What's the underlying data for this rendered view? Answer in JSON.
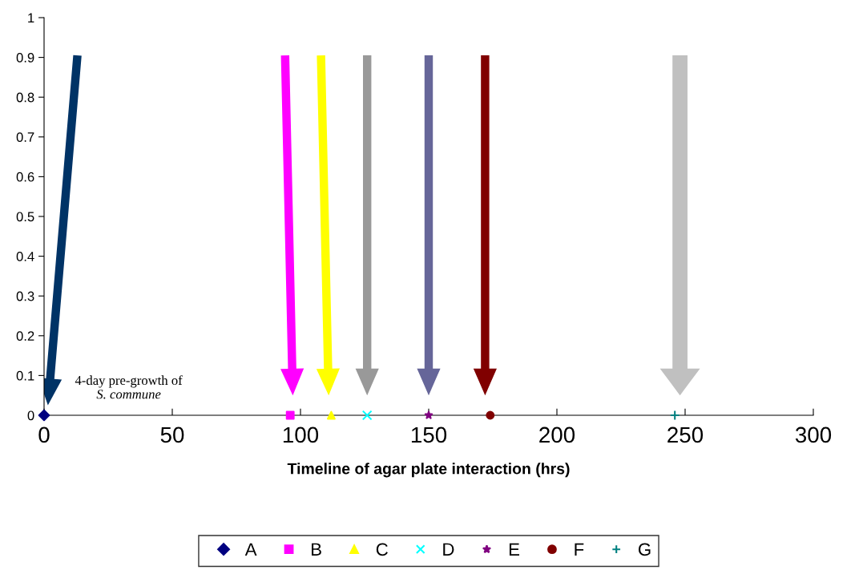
{
  "chart_data": {
    "type": "scatter",
    "xlabel": "Timeline of agar plate interaction (hrs)",
    "xlim": [
      0,
      300
    ],
    "xticks": [
      0,
      50,
      100,
      150,
      200,
      250,
      300
    ],
    "ylim": [
      0,
      1
    ],
    "yticks": [
      0,
      0.1,
      0.2,
      0.3,
      0.4,
      0.5,
      0.6,
      0.7,
      0.8,
      0.9,
      1
    ],
    "grid": false,
    "legend": "bottom",
    "annotations": [
      "4-day pre-growth of\nS. commune"
    ],
    "series": [
      {
        "name": "A",
        "color": "#000080",
        "marker": "diamond",
        "x": [
          0
        ],
        "values": [
          0
        ]
      },
      {
        "name": "B",
        "color": "#ff00ff",
        "marker": "square",
        "x": [
          96
        ],
        "values": [
          0
        ]
      },
      {
        "name": "C",
        "color": "#ffff00",
        "marker": "triangle",
        "x": [
          112
        ],
        "values": [
          0
        ]
      },
      {
        "name": "D",
        "color": "#00ffff",
        "marker": "cross",
        "x": [
          126
        ],
        "values": [
          0
        ]
      },
      {
        "name": "E",
        "color": "#800080",
        "marker": "star",
        "x": [
          150
        ],
        "values": [
          0
        ]
      },
      {
        "name": "F",
        "color": "#800000",
        "marker": "circle",
        "x": [
          174
        ],
        "values": [
          0
        ]
      },
      {
        "name": "G",
        "color": "#008080",
        "marker": "plus",
        "x": [
          246
        ],
        "values": [
          0
        ]
      }
    ]
  }
}
